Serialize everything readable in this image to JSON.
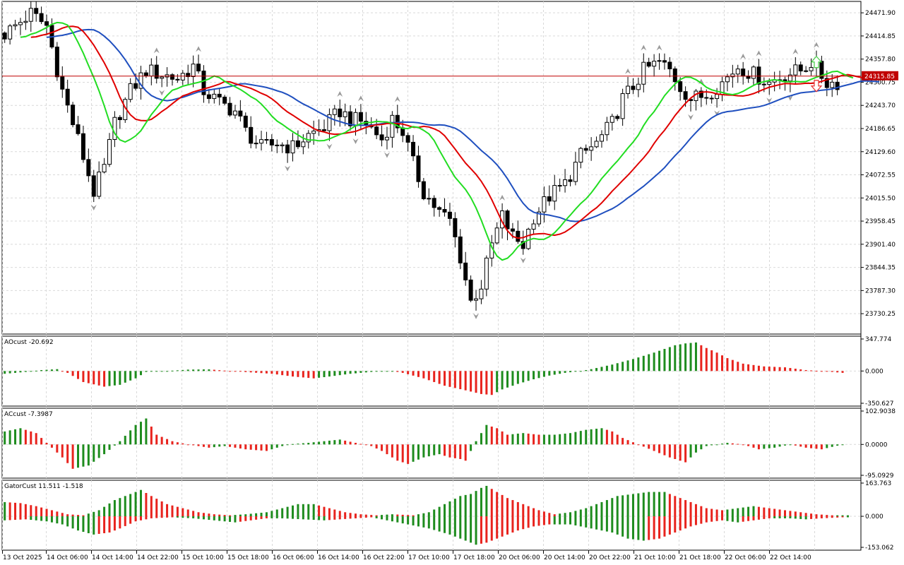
{
  "colors": {
    "grid": "#d9d9d9",
    "axis": "#000000",
    "price_line": "#c00000",
    "bull": "#ffffff",
    "bear": "#000000",
    "up_bar": "#1e8c1e",
    "down_bar": "#e8231d",
    "jaw": "#1f4fbf",
    "teeth": "#e00000",
    "lips": "#22dd22",
    "fractal": "#9a9a9a",
    "arrow_up": "#44cc44",
    "arrow_down": "#e83030"
  },
  "chart_data": {
    "type": "candlestick",
    "price_axis": {
      "ticks": [
        "24471.90",
        "24414.85",
        "24357.80",
        "24300.75",
        "24243.70",
        "24186.65",
        "24129.60",
        "24072.55",
        "24015.50",
        "23958.45",
        "23901.40",
        "23844.35",
        "23787.30",
        "23730.25"
      ],
      "range": [
        23680,
        24500
      ]
    },
    "current_price": "24315.85",
    "x_labels": [
      "13 Oct 2025",
      "14 Oct 06:00",
      "14 Oct 14:00",
      "14 Oct 22:00",
      "15 Oct 10:00",
      "15 Oct 18:00",
      "16 Oct 06:00",
      "16 Oct 14:00",
      "16 Oct 22:00",
      "17 Oct 10:00",
      "17 Oct 18:00",
      "20 Oct 06:00",
      "20 Oct 14:00",
      "20 Oct 22:00",
      "21 Oct 10:00",
      "21 Oct 18:00",
      "22 Oct 06:00",
      "22 Oct 14:00"
    ],
    "close_path": [
      [
        0,
        24420
      ],
      [
        5,
        24470
      ],
      [
        8,
        24440
      ],
      [
        11,
        24280
      ],
      [
        14,
        24160
      ],
      [
        17,
        24030
      ],
      [
        19,
        24090
      ],
      [
        21,
        24200
      ],
      [
        24,
        24280
      ],
      [
        27,
        24330
      ],
      [
        30,
        24320
      ],
      [
        33,
        24310
      ],
      [
        36,
        24340
      ],
      [
        38,
        24280
      ],
      [
        41,
        24250
      ],
      [
        44,
        24230
      ],
      [
        46,
        24180
      ],
      [
        49,
        24140
      ],
      [
        52,
        24150
      ],
      [
        55,
        24140
      ],
      [
        58,
        24170
      ],
      [
        61,
        24190
      ],
      [
        64,
        24230
      ],
      [
        66,
        24210
      ],
      [
        69,
        24200
      ],
      [
        72,
        24160
      ],
      [
        74,
        24210
      ],
      [
        76,
        24180
      ],
      [
        78,
        24100
      ],
      [
        80,
        24030
      ],
      [
        83,
        23980
      ],
      [
        85,
        23960
      ],
      [
        87,
        23870
      ],
      [
        89,
        23760
      ],
      [
        91,
        23800
      ],
      [
        93,
        23900
      ],
      [
        95,
        23970
      ],
      [
        97,
        23920
      ],
      [
        99,
        23900
      ],
      [
        101,
        23970
      ],
      [
        104,
        24020
      ],
      [
        107,
        24050
      ],
      [
        110,
        24120
      ],
      [
        113,
        24150
      ],
      [
        116,
        24200
      ],
      [
        118,
        24260
      ],
      [
        120,
        24290
      ],
      [
        122,
        24330
      ],
      [
        125,
        24350
      ],
      [
        127,
        24330
      ],
      [
        129,
        24290
      ],
      [
        131,
        24260
      ],
      [
        134,
        24270
      ],
      [
        137,
        24300
      ],
      [
        140,
        24340
      ],
      [
        143,
        24320
      ],
      [
        146,
        24300
      ],
      [
        149,
        24320
      ],
      [
        152,
        24330
      ],
      [
        154,
        24350
      ],
      [
        157,
        24300
      ],
      [
        160,
        24300
      ],
      [
        163,
        24310
      ]
    ],
    "alligator_end": {
      "jaw": 24298,
      "teeth": 24315,
      "lips": 24305
    },
    "subwindows": [
      {
        "name": "AOcust -20.692",
        "axis": {
          "top": "347.774",
          "zero": "0.000",
          "bottom": "-350.627"
        },
        "range": [
          -350.627,
          347.774
        ],
        "anchors": [
          [
            0,
            -30
          ],
          [
            4,
            -10
          ],
          [
            7,
            10
          ],
          [
            10,
            20
          ],
          [
            12,
            -20
          ],
          [
            15,
            -120
          ],
          [
            19,
            -170
          ],
          [
            22,
            -150
          ],
          [
            25,
            -80
          ],
          [
            27,
            -10
          ],
          [
            31,
            0
          ],
          [
            35,
            15
          ],
          [
            39,
            18
          ],
          [
            43,
            0
          ],
          [
            47,
            -15
          ],
          [
            51,
            -30
          ],
          [
            55,
            -60
          ],
          [
            59,
            -80
          ],
          [
            62,
            -60
          ],
          [
            66,
            -30
          ],
          [
            70,
            -10
          ],
          [
            74,
            0
          ],
          [
            76,
            -20
          ],
          [
            80,
            -80
          ],
          [
            84,
            -160
          ],
          [
            88,
            -210
          ],
          [
            91,
            -250
          ],
          [
            93,
            -260
          ],
          [
            95,
            -200
          ],
          [
            98,
            -140
          ],
          [
            101,
            -90
          ],
          [
            104,
            -50
          ],
          [
            107,
            -20
          ],
          [
            110,
            0
          ],
          [
            112,
            20
          ],
          [
            116,
            70
          ],
          [
            120,
            130
          ],
          [
            124,
            200
          ],
          [
            128,
            280
          ],
          [
            130,
            300
          ],
          [
            132,
            310
          ],
          [
            134,
            250
          ],
          [
            136,
            200
          ],
          [
            138,
            140
          ],
          [
            141,
            80
          ],
          [
            145,
            50
          ],
          [
            149,
            40
          ],
          [
            153,
            10
          ],
          [
            157,
            -5
          ],
          [
            160,
            -20
          ]
        ]
      },
      {
        "name": "ACcust -7.3987",
        "axis": {
          "top": "102.9038",
          "zero": "0.0000",
          "bottom": "-95.0929"
        },
        "range": [
          -95.0929,
          102.9038
        ],
        "anchors": [
          [
            0,
            40
          ],
          [
            3,
            50
          ],
          [
            6,
            35
          ],
          [
            9,
            -10
          ],
          [
            11,
            -40
          ],
          [
            13,
            -75
          ],
          [
            16,
            -65
          ],
          [
            19,
            -30
          ],
          [
            22,
            10
          ],
          [
            25,
            60
          ],
          [
            27,
            80
          ],
          [
            29,
            30
          ],
          [
            32,
            10
          ],
          [
            35,
            0
          ],
          [
            39,
            -10
          ],
          [
            42,
            -5
          ],
          [
            46,
            -15
          ],
          [
            50,
            -20
          ],
          [
            54,
            0
          ],
          [
            58,
            5
          ],
          [
            61,
            10
          ],
          [
            64,
            15
          ],
          [
            67,
            5
          ],
          [
            70,
            -5
          ],
          [
            72,
            -20
          ],
          [
            75,
            -50
          ],
          [
            77,
            -60
          ],
          [
            80,
            -40
          ],
          [
            83,
            -30
          ],
          [
            85,
            -40
          ],
          [
            87,
            -45
          ],
          [
            88,
            -50
          ],
          [
            90,
            10
          ],
          [
            92,
            60
          ],
          [
            94,
            50
          ],
          [
            96,
            30
          ],
          [
            99,
            35
          ],
          [
            102,
            30
          ],
          [
            105,
            30
          ],
          [
            108,
            35
          ],
          [
            111,
            45
          ],
          [
            114,
            50
          ],
          [
            116,
            40
          ],
          [
            118,
            20
          ],
          [
            121,
            0
          ],
          [
            124,
            -20
          ],
          [
            127,
            -40
          ],
          [
            130,
            -55
          ],
          [
            132,
            -25
          ],
          [
            134,
            -5
          ],
          [
            138,
            5
          ],
          [
            141,
            0
          ],
          [
            144,
            -15
          ],
          [
            147,
            -10
          ],
          [
            150,
            0
          ],
          [
            153,
            -10
          ],
          [
            156,
            -15
          ],
          [
            160,
            0
          ]
        ]
      },
      {
        "name": "GatorCust 11.511 -1.518",
        "axis": {
          "top": "163.763",
          "zero": "0.000",
          "bottom": "-153.062"
        },
        "range": [
          -153.062,
          163.763
        ],
        "upper": [
          [
            0,
            70
          ],
          [
            3,
            65
          ],
          [
            6,
            50
          ],
          [
            9,
            30
          ],
          [
            12,
            10
          ],
          [
            15,
            5
          ],
          [
            18,
            30
          ],
          [
            21,
            80
          ],
          [
            24,
            110
          ],
          [
            26,
            130
          ],
          [
            28,
            100
          ],
          [
            31,
            60
          ],
          [
            34,
            40
          ],
          [
            37,
            20
          ],
          [
            40,
            10
          ],
          [
            43,
            5
          ],
          [
            46,
            10
          ],
          [
            50,
            20
          ],
          [
            53,
            40
          ],
          [
            56,
            60
          ],
          [
            59,
            60
          ],
          [
            62,
            40
          ],
          [
            65,
            20
          ],
          [
            68,
            10
          ],
          [
            71,
            5
          ],
          [
            74,
            10
          ],
          [
            78,
            5
          ],
          [
            81,
            20
          ],
          [
            84,
            60
          ],
          [
            87,
            100
          ],
          [
            89,
            110
          ],
          [
            91,
            140
          ],
          [
            92,
            150
          ],
          [
            94,
            120
          ],
          [
            96,
            90
          ],
          [
            99,
            60
          ],
          [
            102,
            30
          ],
          [
            105,
            10
          ],
          [
            108,
            20
          ],
          [
            111,
            40
          ],
          [
            114,
            70
          ],
          [
            117,
            100
          ],
          [
            120,
            110
          ],
          [
            123,
            120
          ],
          [
            126,
            120
          ],
          [
            128,
            100
          ],
          [
            131,
            70
          ],
          [
            134,
            40
          ],
          [
            137,
            30
          ],
          [
            140,
            40
          ],
          [
            143,
            50
          ],
          [
            146,
            40
          ],
          [
            149,
            30
          ],
          [
            152,
            20
          ],
          [
            155,
            10
          ],
          [
            158,
            5
          ]
        ],
        "lower": [
          [
            0,
            -20
          ],
          [
            4,
            -15
          ],
          [
            8,
            -25
          ],
          [
            11,
            -40
          ],
          [
            14,
            -70
          ],
          [
            17,
            -90
          ],
          [
            20,
            -80
          ],
          [
            22,
            -60
          ],
          [
            25,
            -25
          ],
          [
            28,
            -10
          ],
          [
            32,
            -5
          ],
          [
            36,
            -10
          ],
          [
            40,
            -20
          ],
          [
            44,
            -30
          ],
          [
            47,
            -20
          ],
          [
            50,
            -10
          ],
          [
            53,
            -10
          ],
          [
            57,
            -15
          ],
          [
            61,
            -20
          ],
          [
            64,
            -15
          ],
          [
            67,
            -10
          ],
          [
            70,
            -5
          ],
          [
            73,
            -20
          ],
          [
            77,
            -40
          ],
          [
            81,
            -60
          ],
          [
            85,
            -90
          ],
          [
            88,
            -120
          ],
          [
            90,
            -140
          ],
          [
            92,
            -130
          ],
          [
            95,
            -100
          ],
          [
            98,
            -70
          ],
          [
            101,
            -50
          ],
          [
            104,
            -40
          ],
          [
            108,
            -40
          ],
          [
            112,
            -60
          ],
          [
            116,
            -80
          ],
          [
            119,
            -110
          ],
          [
            122,
            -120
          ],
          [
            125,
            -110
          ],
          [
            128,
            -80
          ],
          [
            131,
            -50
          ],
          [
            134,
            -30
          ],
          [
            137,
            -20
          ],
          [
            140,
            -30
          ],
          [
            143,
            -20
          ],
          [
            146,
            -10
          ],
          [
            150,
            -10
          ],
          [
            153,
            -15
          ],
          [
            156,
            -10
          ],
          [
            160,
            -5
          ]
        ]
      }
    ]
  }
}
